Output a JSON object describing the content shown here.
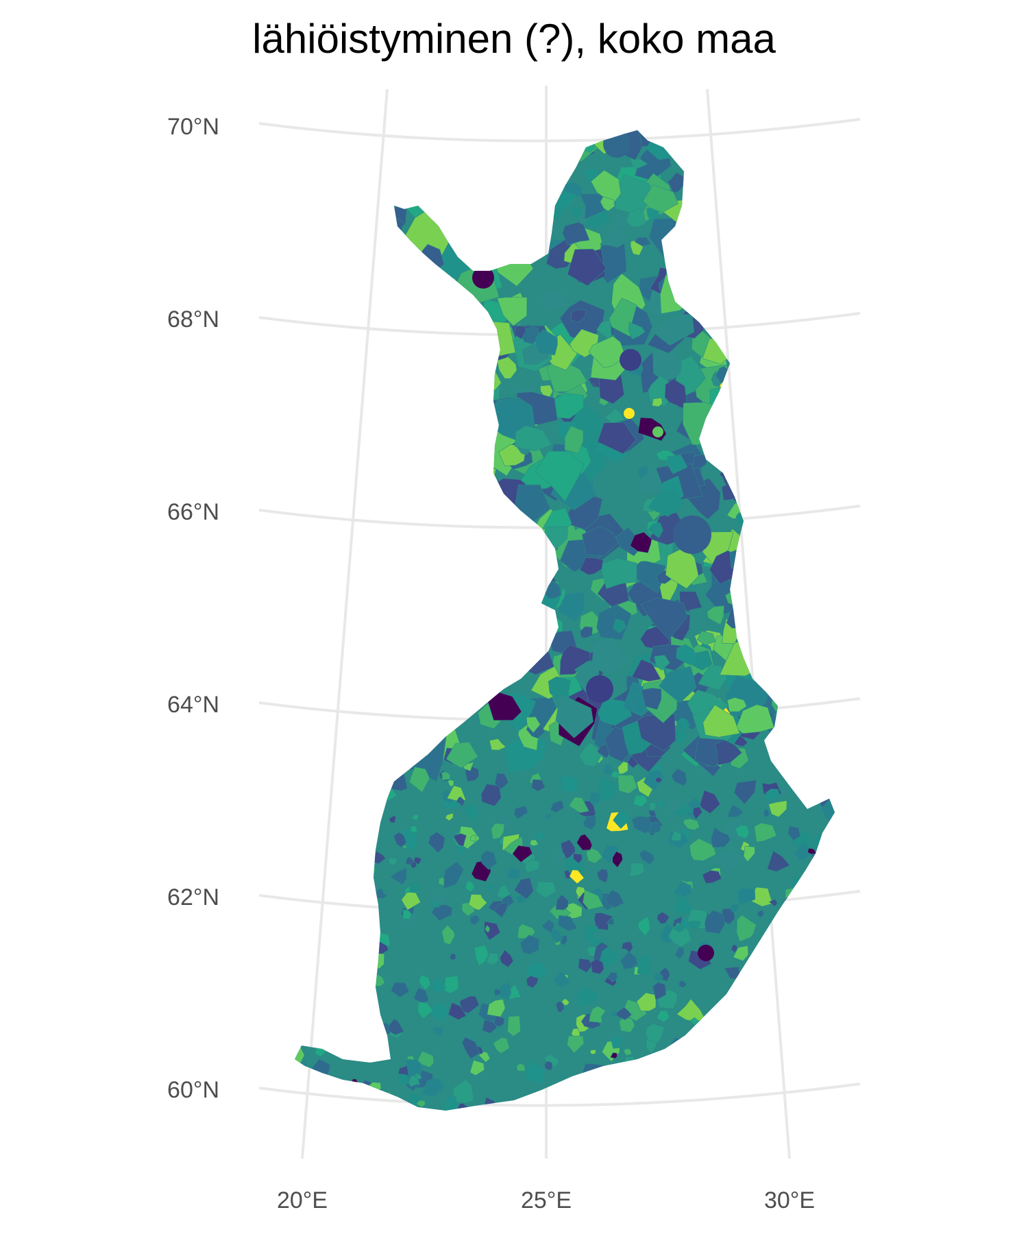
{
  "title": "lähiöistyminen (?), koko maa",
  "map": {
    "region": "Finland",
    "unit": "postal code areas",
    "color_scale": "viridis",
    "legend": "none",
    "lat_ticks": [
      {
        "value": 70,
        "label": "70°N"
      },
      {
        "value": 68,
        "label": "68°N"
      },
      {
        "value": 66,
        "label": "66°N"
      },
      {
        "value": 64,
        "label": "64°N"
      },
      {
        "value": 62,
        "label": "62°N"
      },
      {
        "value": 60,
        "label": "60°N"
      }
    ],
    "lon_ticks": [
      {
        "value": 20,
        "label": "20°E"
      },
      {
        "value": 25,
        "label": "25°E"
      },
      {
        "value": 30,
        "label": "30°E"
      }
    ],
    "colors": {
      "background": "#ffffff",
      "graticule": "#e8e8e8",
      "tick_text": "#4d4d4d",
      "viridis_dark": "#440154",
      "viridis_blue": "#31688e",
      "viridis_teal": "#21918c",
      "viridis_green": "#35b779",
      "viridis_yellow": "#fde725"
    }
  }
}
